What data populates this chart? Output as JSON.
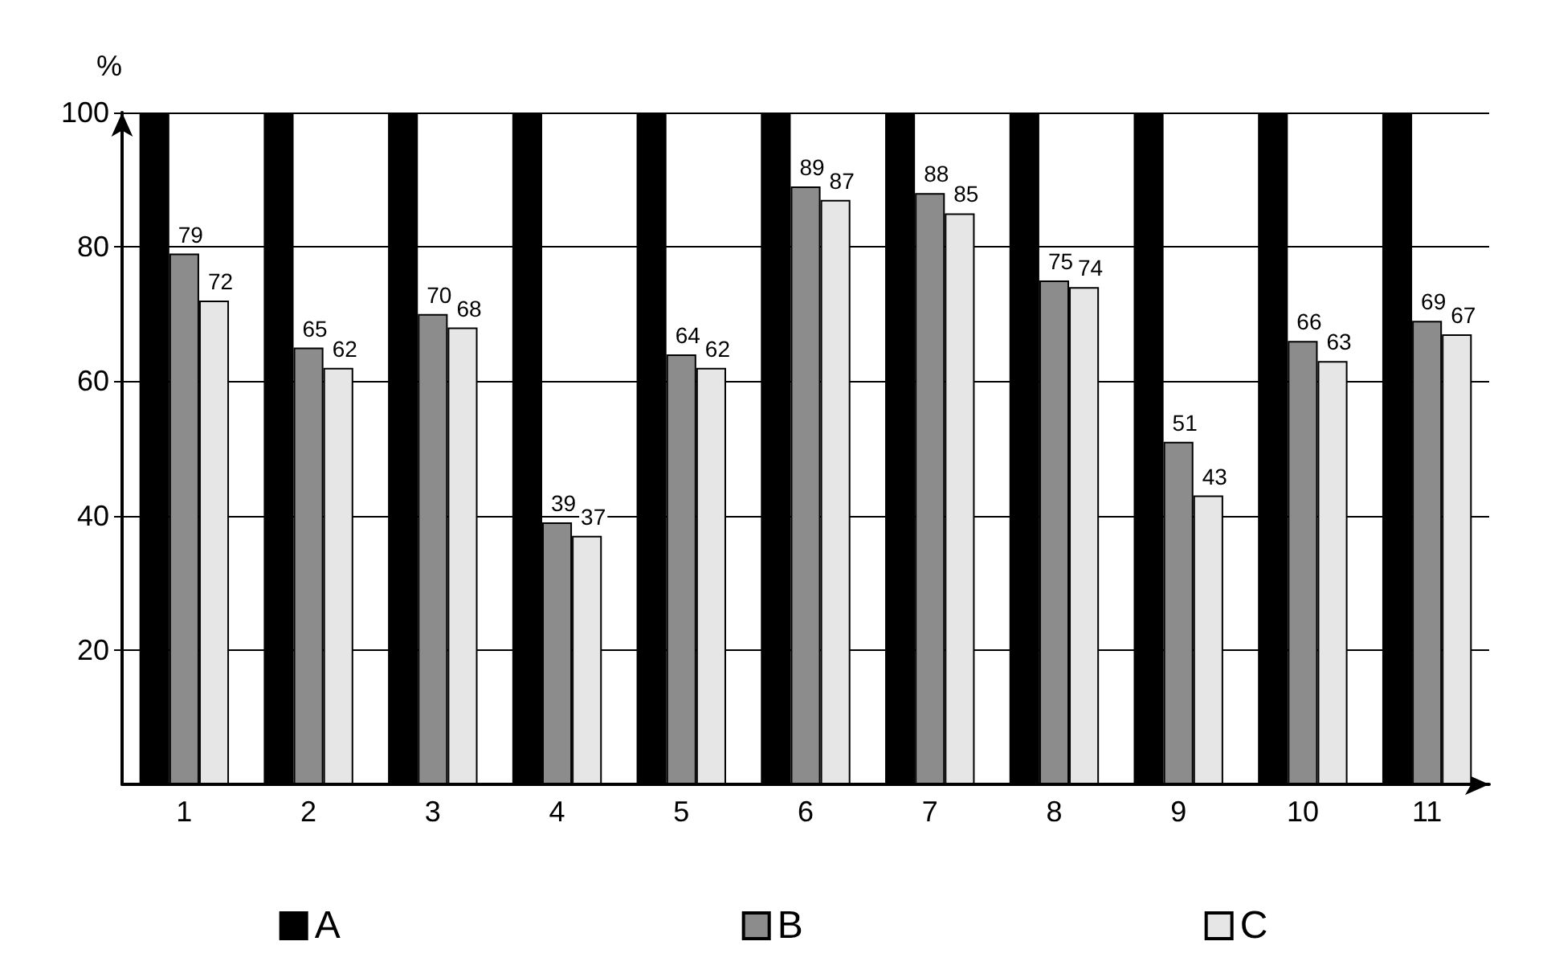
{
  "chart_data": {
    "type": "bar",
    "ylabel": "%",
    "categories": [
      "1",
      "2",
      "3",
      "4",
      "5",
      "6",
      "7",
      "8",
      "9",
      "10",
      "11"
    ],
    "series": [
      {
        "name": "A",
        "color": "#000000",
        "values": [
          100,
          100,
          100,
          100,
          100,
          100,
          100,
          100,
          100,
          100,
          100
        ]
      },
      {
        "name": "B",
        "color": "#8c8c8c",
        "values": [
          79,
          65,
          70,
          39,
          64,
          89,
          88,
          75,
          51,
          66,
          69
        ],
        "value_labels": [
          "79",
          "65",
          "70",
          "39",
          "64",
          "89",
          "88",
          "75",
          "51",
          "66",
          "69"
        ]
      },
      {
        "name": "C",
        "color": "#e6e6e6",
        "values": [
          72,
          62,
          68,
          37,
          62,
          87,
          85,
          74,
          43,
          63,
          67
        ],
        "value_labels": [
          "72",
          "62",
          "68",
          "37",
          "62",
          "87",
          "85",
          "74",
          "43",
          "63",
          "67"
        ]
      }
    ],
    "ylim": [
      0,
      100
    ],
    "yticks": [
      20,
      40,
      60,
      80,
      100
    ],
    "grid": "y",
    "legend": "bottom"
  }
}
